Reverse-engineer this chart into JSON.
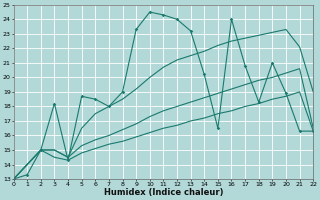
{
  "xlabel": "Humidex (Indice chaleur)",
  "xlim": [
    0,
    22
  ],
  "ylim": [
    13,
    25
  ],
  "xticks": [
    0,
    1,
    2,
    3,
    4,
    5,
    6,
    7,
    8,
    9,
    10,
    11,
    12,
    13,
    14,
    15,
    16,
    17,
    18,
    19,
    20,
    21,
    22
  ],
  "yticks": [
    13,
    14,
    15,
    16,
    17,
    18,
    19,
    20,
    21,
    22,
    23,
    24,
    25
  ],
  "bg_color": "#b2d8d8",
  "grid_color": "#ffffff",
  "line_color": "#1a7a6e",
  "line1_x": [
    0,
    1,
    2,
    3,
    4,
    5,
    6,
    7,
    8,
    9,
    10,
    11,
    12,
    13,
    14,
    15,
    16,
    17,
    18,
    19,
    20,
    21,
    22
  ],
  "line1_y": [
    13,
    13.3,
    15.0,
    18.2,
    14.3,
    18.7,
    18.5,
    18.0,
    19.0,
    23.3,
    24.5,
    24.3,
    24.0,
    23.2,
    20.2,
    16.5,
    24.0,
    20.8,
    18.3,
    21.0,
    18.9,
    16.3,
    16.3
  ],
  "line2_x": [
    0,
    2,
    3,
    4,
    5,
    6,
    7,
    8,
    9,
    10,
    11,
    12,
    13,
    14,
    15,
    16,
    17,
    18,
    19,
    20,
    21,
    22
  ],
  "line2_y": [
    13,
    15.0,
    15.0,
    14.5,
    16.5,
    17.5,
    18.0,
    18.5,
    19.2,
    20.0,
    20.7,
    21.2,
    21.5,
    21.8,
    22.2,
    22.5,
    22.7,
    22.9,
    23.1,
    23.3,
    22.1,
    19.0
  ],
  "line3_x": [
    0,
    2,
    3,
    4,
    5,
    6,
    7,
    8,
    9,
    10,
    11,
    12,
    13,
    14,
    15,
    16,
    17,
    18,
    19,
    20,
    21,
    22
  ],
  "line3_y": [
    13,
    15.0,
    15.0,
    14.5,
    15.3,
    15.7,
    16.0,
    16.4,
    16.8,
    17.3,
    17.7,
    18.0,
    18.3,
    18.6,
    18.9,
    19.2,
    19.5,
    19.8,
    20.0,
    20.3,
    20.6,
    16.5
  ],
  "line4_x": [
    0,
    2,
    3,
    4,
    5,
    6,
    7,
    8,
    9,
    10,
    11,
    12,
    13,
    14,
    15,
    16,
    17,
    18,
    19,
    20,
    21,
    22
  ],
  "line4_y": [
    13,
    15.0,
    14.5,
    14.3,
    14.8,
    15.1,
    15.4,
    15.6,
    15.9,
    16.2,
    16.5,
    16.7,
    17.0,
    17.2,
    17.5,
    17.7,
    18.0,
    18.2,
    18.5,
    18.7,
    19.0,
    16.3
  ]
}
